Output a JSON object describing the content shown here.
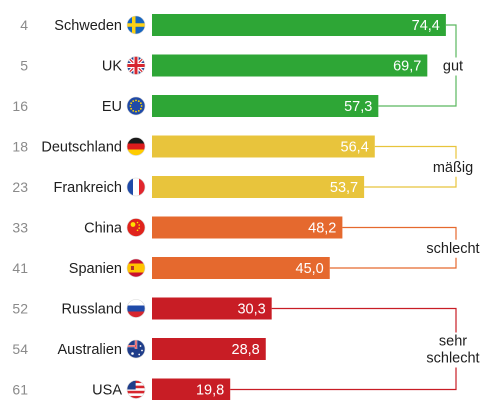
{
  "chart_data": {
    "type": "bar",
    "orientation": "horizontal",
    "xlim": [
      0,
      100
    ],
    "rows": [
      {
        "rank": "4",
        "country": "Schweden",
        "flag": "sweden-flag",
        "value": 74.4,
        "label": "74,4",
        "group": "gut"
      },
      {
        "rank": "5",
        "country": "UK",
        "flag": "uk-flag",
        "value": 69.7,
        "label": "69,7",
        "group": "gut"
      },
      {
        "rank": "16",
        "country": "EU",
        "flag": "eu-flag",
        "value": 57.3,
        "label": "57,3",
        "group": "gut"
      },
      {
        "rank": "18",
        "country": "Deutschland",
        "flag": "germany-flag",
        "value": 56.4,
        "label": "56,4",
        "group": "mäßig"
      },
      {
        "rank": "23",
        "country": "Frankreich",
        "flag": "france-flag",
        "value": 53.7,
        "label": "53,7",
        "group": "mäßig"
      },
      {
        "rank": "33",
        "country": "China",
        "flag": "china-flag",
        "value": 48.2,
        "label": "48,2",
        "group": "schlecht"
      },
      {
        "rank": "41",
        "country": "Spanien",
        "flag": "spain-flag",
        "value": 45.0,
        "label": "45,0",
        "group": "schlecht"
      },
      {
        "rank": "52",
        "country": "Russland",
        "flag": "russia-flag",
        "value": 30.3,
        "label": "30,3",
        "group": "sehr schlecht"
      },
      {
        "rank": "54",
        "country": "Australien",
        "flag": "australia-flag",
        "value": 28.8,
        "label": "28,8",
        "group": "sehr schlecht"
      },
      {
        "rank": "61",
        "country": "USA",
        "flag": "usa-flag",
        "value": 19.8,
        "label": "19,8",
        "group": "sehr schlecht"
      }
    ],
    "groups": [
      {
        "key": "gut",
        "lines": [
          "gut"
        ],
        "color": "#2ea636",
        "bracket_color": "#5bb85f"
      },
      {
        "key": "mäßig",
        "lines": [
          "mäßig"
        ],
        "color": "#e8c43c",
        "bracket_color": "#e8c43c"
      },
      {
        "key": "schlecht",
        "lines": [
          "schlecht"
        ],
        "color": "#e5692e",
        "bracket_color": "#e5692e"
      },
      {
        "key": "sehr schlecht",
        "lines": [
          "sehr",
          "schlecht"
        ],
        "color": "#c81d25",
        "bracket_color": "#c81d25"
      }
    ]
  }
}
